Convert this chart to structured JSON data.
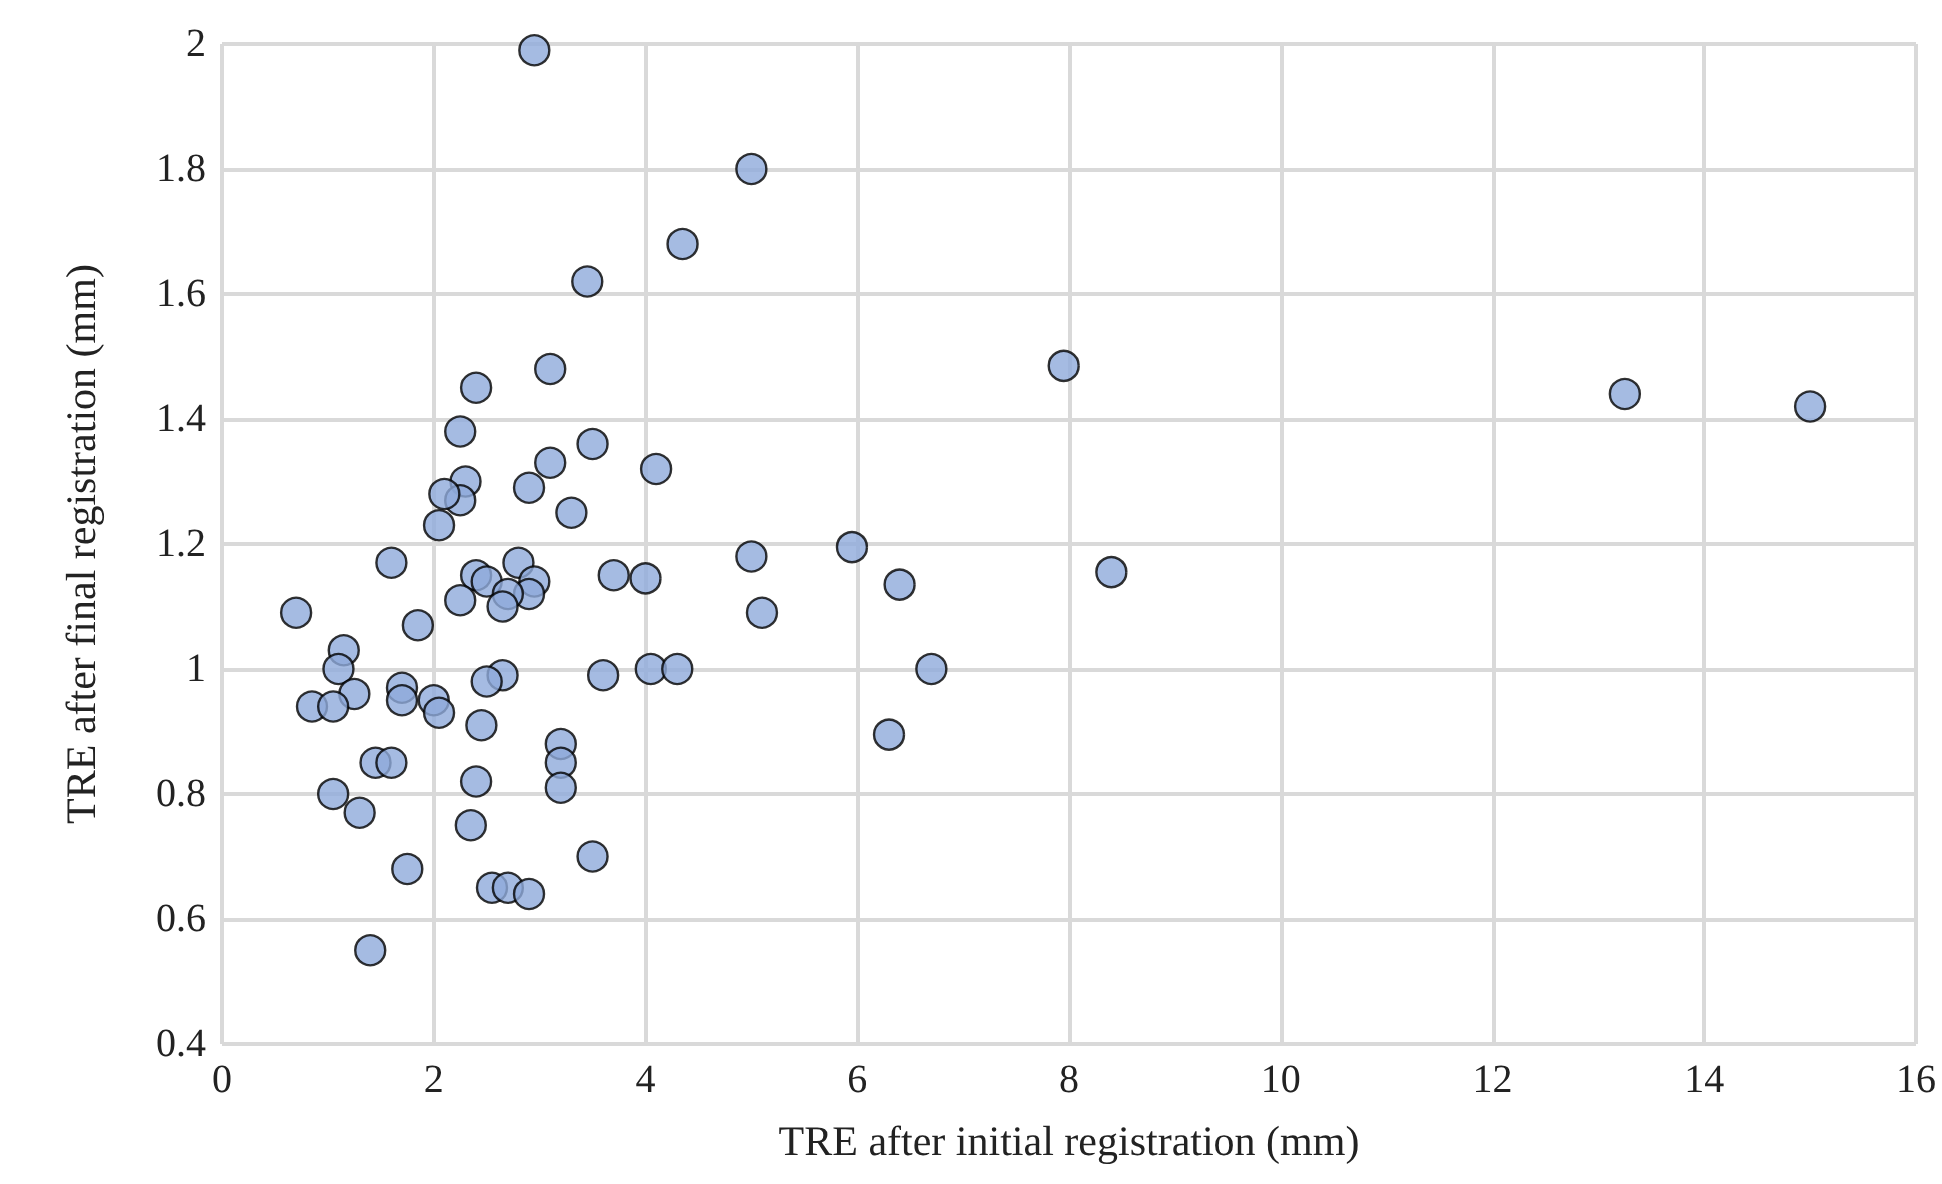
{
  "chart_data": {
    "type": "scatter",
    "xlabel": "TRE after initial registration (mm)",
    "ylabel": "TRE after final registration (mm)",
    "x": [
      2.95,
      5.0,
      4.35,
      3.45,
      7.95,
      13.25,
      15.0,
      3.1,
      2.4,
      2.25,
      3.5,
      4.1,
      3.1,
      2.3,
      2.25,
      2.9,
      2.1,
      3.3,
      2.05,
      5.95,
      5.0,
      1.6,
      2.8,
      8.4,
      3.7,
      4.0,
      6.4,
      2.4,
      2.95,
      2.5,
      2.9,
      2.7,
      2.25,
      2.65,
      0.7,
      5.1,
      1.85,
      1.15,
      1.1,
      4.05,
      4.3,
      6.7,
      3.6,
      2.65,
      2.5,
      1.7,
      1.25,
      2.0,
      1.7,
      0.85,
      1.05,
      2.05,
      2.45,
      6.3,
      3.2,
      1.45,
      1.6,
      3.2,
      2.4,
      3.2,
      1.05,
      1.3,
      2.35,
      3.5,
      1.75,
      2.55,
      2.7,
      2.9,
      1.4
    ],
    "values": [
      1.99,
      1.8,
      1.68,
      1.62,
      1.485,
      1.44,
      1.42,
      1.48,
      1.45,
      1.38,
      1.36,
      1.32,
      1.33,
      1.3,
      1.27,
      1.29,
      1.28,
      1.25,
      1.23,
      1.195,
      1.18,
      1.17,
      1.17,
      1.155,
      1.15,
      1.145,
      1.135,
      1.15,
      1.14,
      1.14,
      1.12,
      1.12,
      1.11,
      1.1,
      1.09,
      1.09,
      1.07,
      1.03,
      1.0,
      1.0,
      1.0,
      1.0,
      0.99,
      0.99,
      0.98,
      0.97,
      0.96,
      0.95,
      0.95,
      0.94,
      0.94,
      0.93,
      0.91,
      0.895,
      0.88,
      0.85,
      0.85,
      0.85,
      0.82,
      0.81,
      0.8,
      0.77,
      0.75,
      0.7,
      0.68,
      0.65,
      0.65,
      0.64,
      0.55
    ],
    "color": "#8eaadb",
    "marker": "circle",
    "grid": true,
    "xlim": [
      0,
      16
    ],
    "xticks": [
      0,
      2,
      4,
      6,
      8,
      10,
      12,
      14,
      16
    ],
    "ylim": [
      0.4,
      2
    ],
    "yticks": [
      0.4,
      0.6,
      0.8,
      1,
      1.2,
      1.4,
      1.6,
      1.8,
      2
    ]
  }
}
